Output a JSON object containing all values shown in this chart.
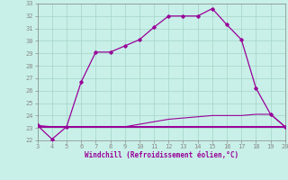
{
  "xlabel": "Windchill (Refroidissement éolien,°C)",
  "bg_color": "#c8f0e8",
  "grid_color": "#aad8cc",
  "line_color": "#990099",
  "spine_color": "#888888",
  "xlim": [
    3,
    20
  ],
  "ylim": [
    22,
    33
  ],
  "xticks": [
    3,
    4,
    5,
    6,
    7,
    8,
    9,
    10,
    11,
    12,
    13,
    14,
    15,
    16,
    17,
    18,
    19,
    20
  ],
  "yticks": [
    22,
    23,
    24,
    25,
    26,
    27,
    28,
    29,
    30,
    31,
    32,
    33
  ],
  "curve1_x": [
    3,
    4,
    5,
    6,
    7,
    8,
    9,
    10,
    11,
    12,
    13,
    14,
    15,
    16,
    17,
    18,
    19,
    20
  ],
  "curve1_y": [
    23.2,
    22.1,
    23.1,
    26.7,
    29.1,
    29.1,
    29.6,
    30.1,
    31.1,
    32.0,
    32.0,
    32.0,
    32.6,
    31.3,
    30.1,
    26.2,
    24.1,
    23.1
  ],
  "curve2_x": [
    3,
    4,
    5,
    6,
    7,
    8,
    9,
    10,
    11,
    12,
    13,
    14,
    15,
    16,
    17,
    18,
    19,
    20
  ],
  "curve2_y": [
    23.2,
    23.1,
    23.1,
    23.1,
    23.1,
    23.1,
    23.1,
    23.3,
    23.5,
    23.7,
    23.8,
    23.9,
    24.0,
    24.0,
    24.0,
    24.1,
    24.1,
    23.1
  ],
  "curve3_x": [
    3,
    20
  ],
  "curve3_y": [
    23.1,
    23.1
  ]
}
